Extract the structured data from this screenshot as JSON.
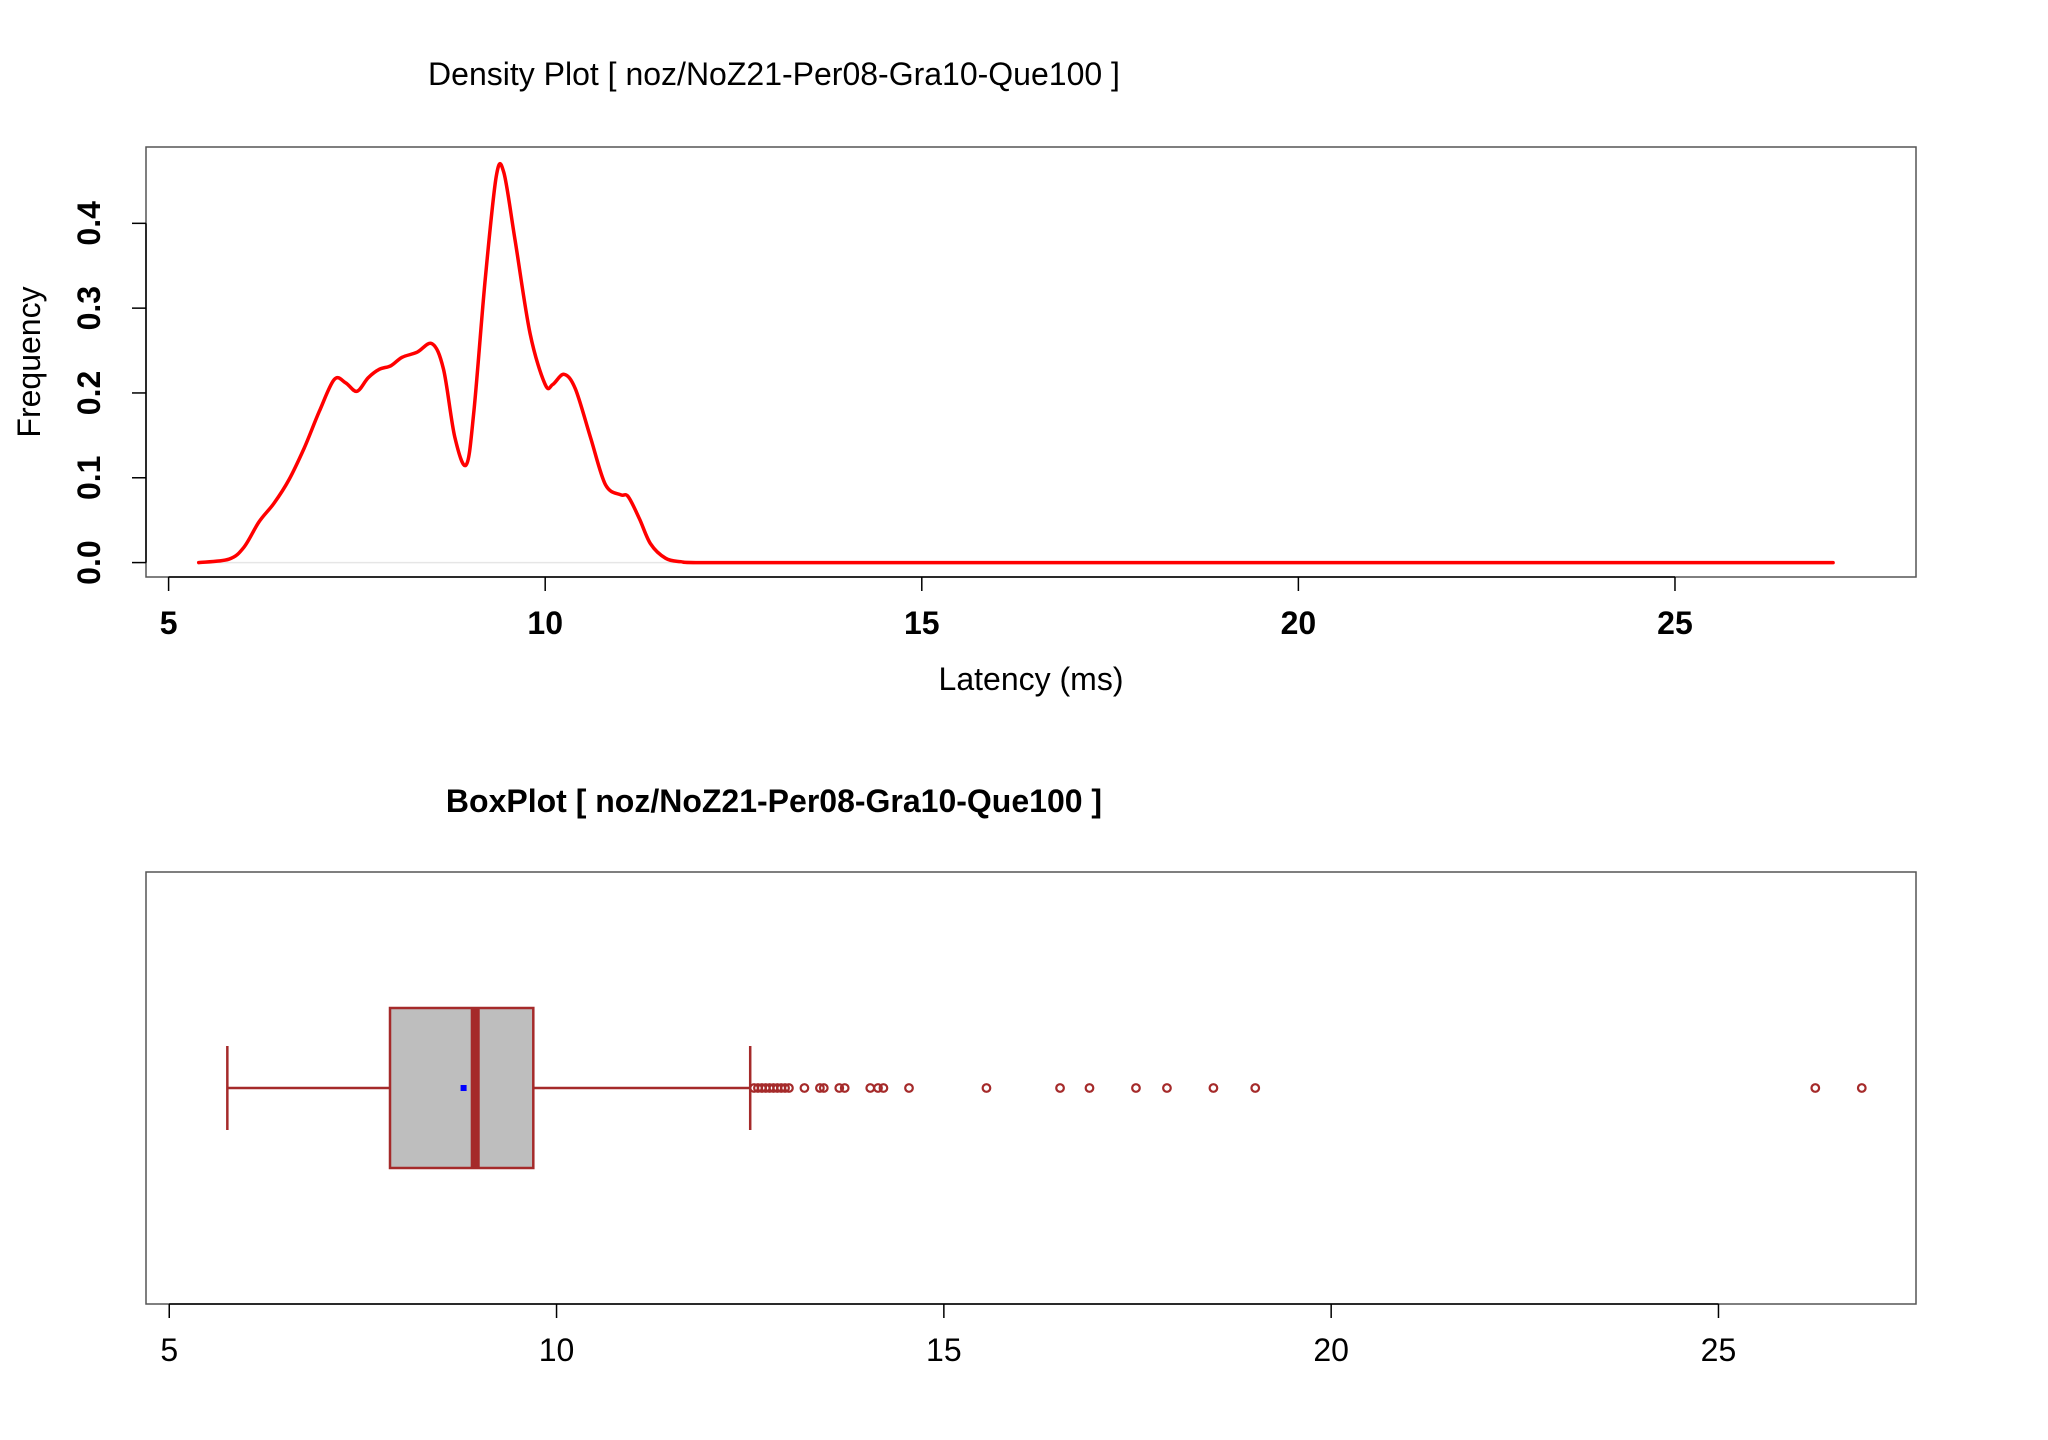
{
  "chart_data": [
    {
      "type": "line",
      "title": "Density Plot [ noz/NoZ21-Per08-Gra10-Que100 ]",
      "xlabel": "Latency (ms)",
      "ylabel": "Frequency",
      "xlim": [
        4.7,
        28.2
      ],
      "ylim": [
        -0.017,
        0.49
      ],
      "xticks": [
        "5",
        "10",
        "15",
        "20",
        "25"
      ],
      "xtick_values": [
        5,
        10,
        15,
        20,
        25
      ],
      "yticks": [
        "0.0",
        "0.1",
        "0.2",
        "0.3",
        "0.4"
      ],
      "ytick_values": [
        0,
        0.1,
        0.2,
        0.3,
        0.4
      ],
      "grid": false,
      "series": [
        {
          "color": "#ff0000",
          "x": [
            5.4,
            5.8,
            6.0,
            6.2,
            6.4,
            6.6,
            6.8,
            7.0,
            7.2,
            7.35,
            7.5,
            7.65,
            7.8,
            7.95,
            8.1,
            8.3,
            8.5,
            8.65,
            8.8,
            8.95,
            9.05,
            9.2,
            9.35,
            9.45,
            9.6,
            9.8,
            10.0,
            10.1,
            10.25,
            10.4,
            10.6,
            10.8,
            11.0,
            11.1,
            11.25,
            11.4,
            11.6,
            11.8,
            12.0,
            13.0,
            15.0,
            20.0,
            25.0,
            27.1
          ],
          "y": [
            0.0,
            0.004,
            0.018,
            0.048,
            0.07,
            0.098,
            0.135,
            0.178,
            0.216,
            0.212,
            0.202,
            0.218,
            0.228,
            0.232,
            0.242,
            0.248,
            0.258,
            0.228,
            0.148,
            0.115,
            0.175,
            0.33,
            0.455,
            0.46,
            0.38,
            0.27,
            0.21,
            0.21,
            0.222,
            0.205,
            0.148,
            0.092,
            0.08,
            0.078,
            0.052,
            0.022,
            0.005,
            0.001,
            0.0,
            0.0,
            0.0,
            0.0,
            0.0,
            0.0
          ]
        }
      ]
    },
    {
      "type": "box",
      "title": "BoxPlot [ noz/NoZ21-Per08-Gra10-Que100 ]",
      "xlim": [
        4.7,
        27.55
      ],
      "xticks": [
        "5",
        "10",
        "15",
        "20",
        "25"
      ],
      "xtick_values": [
        5,
        10,
        15,
        20,
        25
      ],
      "whisker_low": 5.75,
      "q1": 7.85,
      "median": 8.95,
      "q3": 9.7,
      "whisker_high": 12.5,
      "mean": 8.8,
      "box_color": "#bebebe",
      "line_color": "#a52a2a",
      "mean_color": "#0000ff",
      "outliers": [
        12.55,
        12.6,
        12.65,
        12.7,
        12.75,
        12.8,
        12.85,
        12.9,
        12.95,
        13.0,
        13.2,
        13.4,
        13.45,
        13.65,
        13.72,
        14.05,
        14.15,
        14.22,
        14.55,
        15.55,
        16.5,
        16.88,
        17.48,
        17.88,
        18.48,
        19.02,
        26.25,
        26.85
      ]
    }
  ]
}
